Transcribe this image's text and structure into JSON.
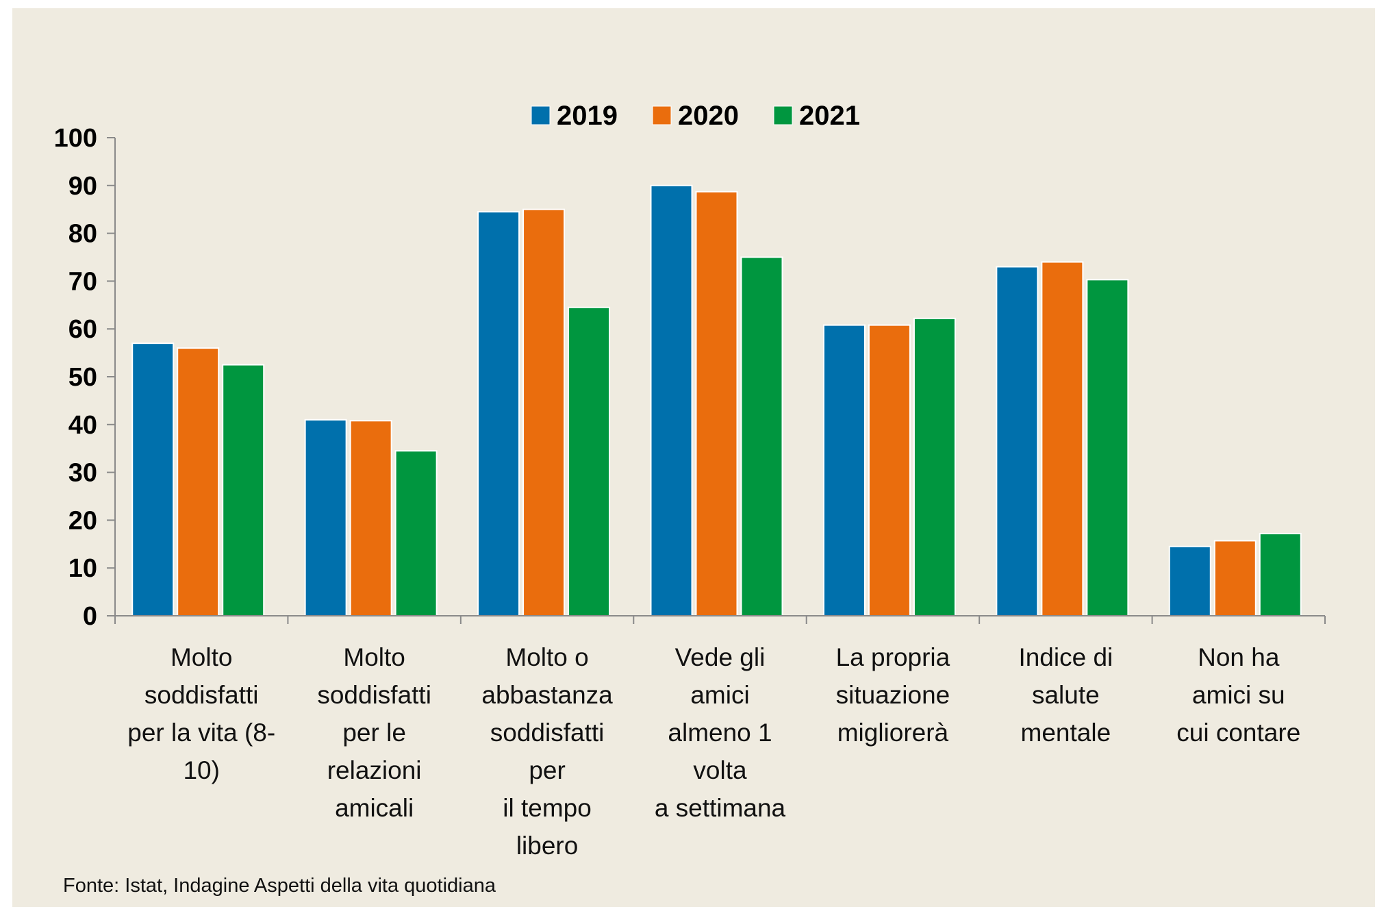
{
  "chart_data": {
    "type": "bar",
    "categories": [
      [
        "Molto",
        "soddisfatti",
        "per la vita (8-",
        "10)"
      ],
      [
        "Molto",
        "soddisfatti",
        "per le",
        "relazioni",
        "amicali"
      ],
      [
        "Molto o",
        "abbastanza",
        "soddisfatti",
        "per",
        "il tempo",
        "libero"
      ],
      [
        "Vede gli",
        "amici",
        "almeno 1",
        "volta",
        "a settimana"
      ],
      [
        "La propria",
        "situazione",
        "migliorerà"
      ],
      [
        "Indice di",
        "salute",
        "mentale"
      ],
      [
        "Non ha",
        "amici su",
        "cui contare"
      ]
    ],
    "series": [
      {
        "name": "2019",
        "color": "#0070ac",
        "values": [
          57.0,
          41.0,
          84.5,
          90.0,
          60.8,
          73.0,
          14.5
        ]
      },
      {
        "name": "2020",
        "color": "#ea6d0d",
        "values": [
          56.0,
          40.8,
          85.0,
          88.7,
          60.8,
          74.0,
          15.7
        ]
      },
      {
        "name": "2021",
        "color": "#00963f",
        "values": [
          52.5,
          34.5,
          64.5,
          75.0,
          62.2,
          70.3,
          17.2
        ]
      }
    ],
    "ylim": [
      0,
      100
    ],
    "yticks": [
      "0",
      "10",
      "20",
      "30",
      "40",
      "50",
      "60",
      "70",
      "80",
      "90",
      "100"
    ],
    "legend_position": "top-center",
    "grid": false,
    "title": "",
    "xlabel": "",
    "ylabel": ""
  },
  "source": "Fonte: Istat, Indagine Aspetti della vita quotidiana"
}
